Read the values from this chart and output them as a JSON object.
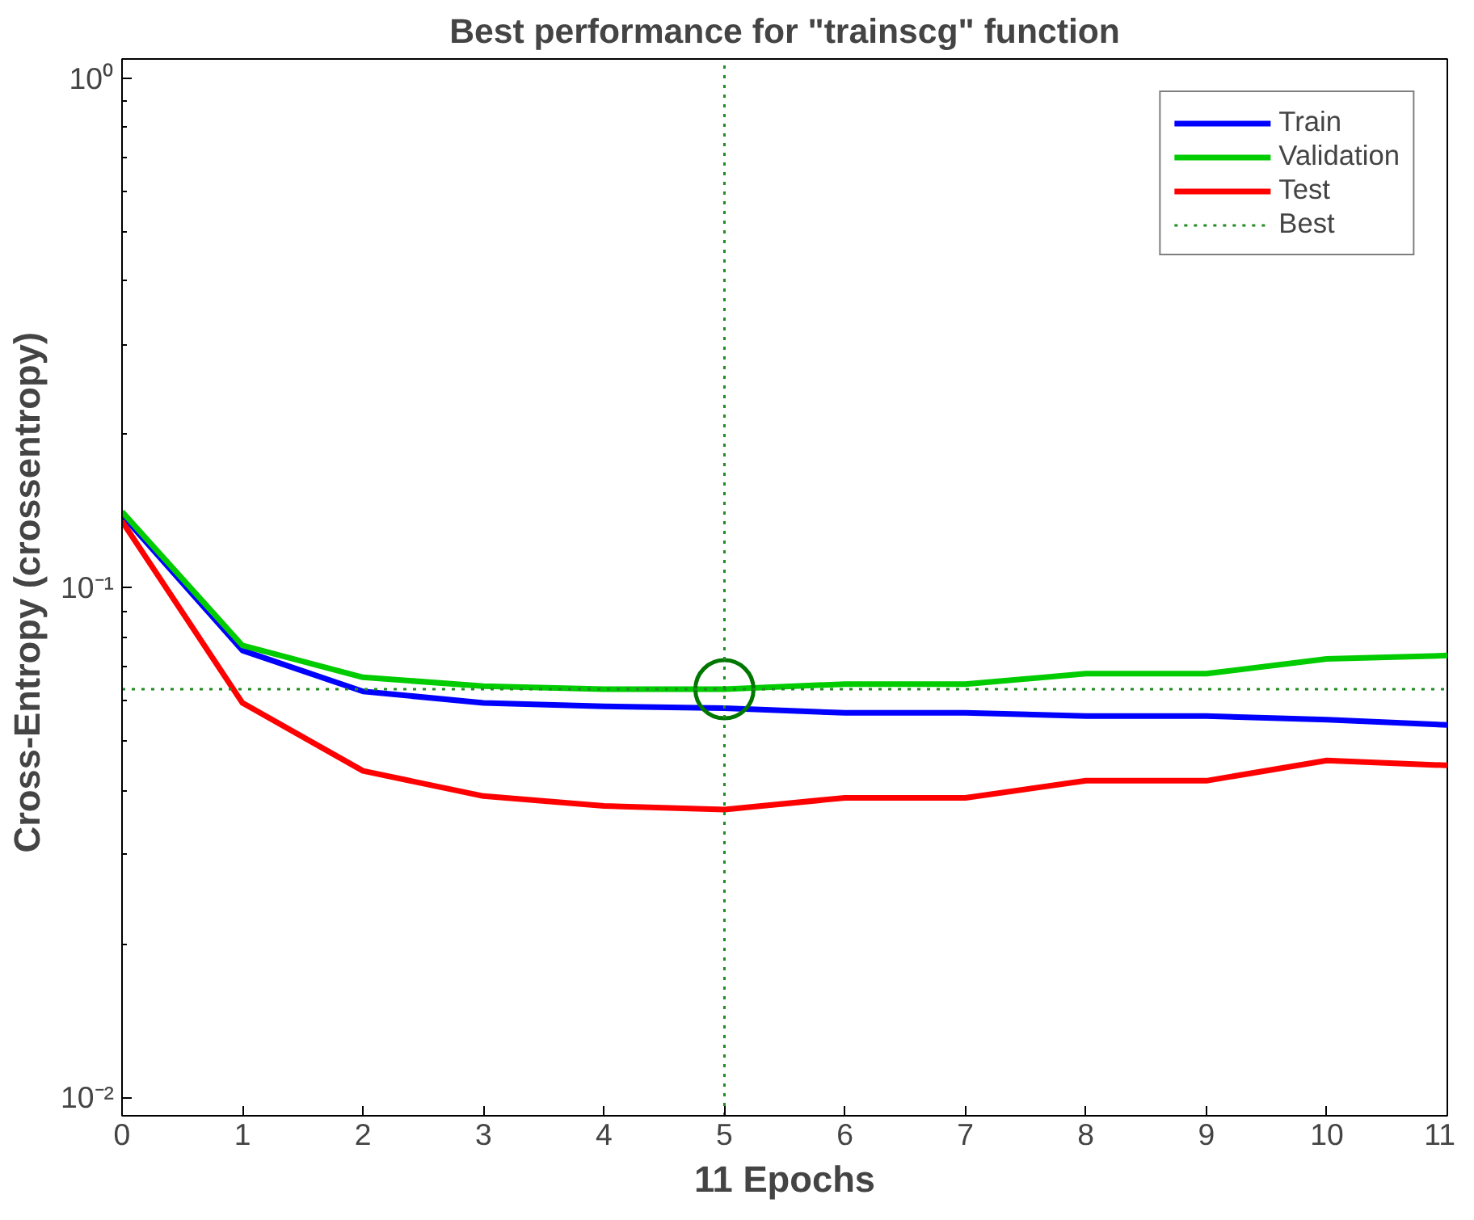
{
  "chart_data": {
    "type": "line",
    "title": "Best performance for \"trainscg\" function",
    "xlabel": "11 Epochs",
    "ylabel": "Cross-Entropy  (crossentropy)",
    "x": [
      0,
      1,
      2,
      3,
      4,
      5,
      6,
      7,
      8,
      9,
      10,
      11
    ],
    "series": [
      {
        "name": "Train",
        "color": "#0000ff",
        "values": [
          0.139,
          0.0753,
          0.0626,
          0.0594,
          0.0585,
          0.058,
          0.0568,
          0.0568,
          0.056,
          0.056,
          0.0551,
          0.0538
        ]
      },
      {
        "name": "Validation",
        "color": "#00cc00",
        "values": [
          0.141,
          0.077,
          0.0667,
          0.0641,
          0.0632,
          0.0632,
          0.0647,
          0.0647,
          0.0678,
          0.0678,
          0.0725,
          0.0736
        ]
      },
      {
        "name": "Test",
        "color": "#ff0000",
        "values": [
          0.135,
          0.0594,
          0.0437,
          0.039,
          0.0373,
          0.0367,
          0.0387,
          0.0387,
          0.0418,
          0.0418,
          0.0458,
          0.0448
        ]
      },
      {
        "type": "scatter",
        "marker": "circle",
        "color": "#007700",
        "x": [
          5
        ],
        "values": [
          0.0632
        ]
      }
    ],
    "ref_lines": [
      {
        "axis": "y",
        "value": 0.0632,
        "label": "Best",
        "color": "#228b22",
        "line_style": "dotted"
      },
      {
        "axis": "x",
        "value": 5,
        "label": null,
        "color": "#228b22",
        "line_style": "dotted"
      }
    ],
    "log": "y",
    "xlim": [
      0,
      11
    ],
    "ylim": [
      0.0092,
      1.09
    ],
    "xticks": [
      0,
      1,
      2,
      3,
      4,
      5,
      6,
      7,
      8,
      9,
      10,
      11
    ],
    "yticks": [
      {
        "value": 0.01,
        "label": "10⁻²"
      },
      {
        "value": 0.02,
        "label": null
      },
      {
        "value": 0.03,
        "label": null
      },
      {
        "value": 0.04,
        "label": null
      },
      {
        "value": 0.05,
        "label": null
      },
      {
        "value": 0.06,
        "label": null
      },
      {
        "value": 0.07,
        "label": null
      },
      {
        "value": 0.08,
        "label": null
      },
      {
        "value": 0.09,
        "label": null
      },
      {
        "value": 0.1,
        "label": "10⁻¹"
      },
      {
        "value": 0.2,
        "label": null
      },
      {
        "value": 0.3,
        "label": null
      },
      {
        "value": 0.4,
        "label": null
      },
      {
        "value": 0.5,
        "label": null
      },
      {
        "value": 0.6,
        "label": null
      },
      {
        "value": 0.7,
        "label": null
      },
      {
        "value": 0.8,
        "label": null
      },
      {
        "value": 0.9,
        "label": null
      },
      {
        "value": 1,
        "label": "10⁰"
      }
    ],
    "grid": false,
    "legend": "top right",
    "line_style": "solid"
  }
}
